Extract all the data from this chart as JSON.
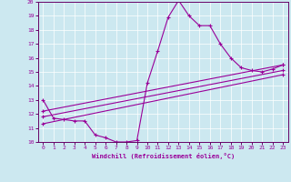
{
  "bg_color": "#cce8f0",
  "line_color": "#990099",
  "marker": "+",
  "xlim": [
    -0.5,
    23.5
  ],
  "ylim": [
    10,
    20
  ],
  "xticks": [
    0,
    1,
    2,
    3,
    4,
    5,
    6,
    7,
    8,
    9,
    10,
    11,
    12,
    13,
    14,
    15,
    16,
    17,
    18,
    19,
    20,
    21,
    22,
    23
  ],
  "yticks": [
    10,
    11,
    12,
    13,
    14,
    15,
    16,
    17,
    18,
    19,
    20
  ],
  "xlabel": "Windchill (Refroidissement éolien,°C)",
  "series": [
    [
      0,
      13.0
    ],
    [
      1,
      11.7
    ],
    [
      2,
      11.6
    ],
    [
      3,
      11.5
    ],
    [
      4,
      11.5
    ],
    [
      5,
      10.5
    ],
    [
      6,
      10.3
    ],
    [
      7,
      10.0
    ],
    [
      8,
      10.0
    ],
    [
      9,
      10.1
    ],
    [
      10,
      14.2
    ],
    [
      11,
      16.5
    ],
    [
      12,
      18.9
    ],
    [
      13,
      20.1
    ],
    [
      14,
      19.0
    ],
    [
      15,
      18.3
    ],
    [
      16,
      18.3
    ],
    [
      17,
      17.0
    ],
    [
      18,
      16.0
    ],
    [
      19,
      15.3
    ],
    [
      20,
      15.1
    ],
    [
      21,
      15.0
    ],
    [
      22,
      15.2
    ],
    [
      23,
      15.5
    ]
  ],
  "line2": [
    [
      0,
      12.2
    ],
    [
      23,
      15.5
    ]
  ],
  "line3": [
    [
      0,
      11.8
    ],
    [
      23,
      15.1
    ]
  ],
  "line4": [
    [
      0,
      11.3
    ],
    [
      23,
      14.8
    ]
  ]
}
